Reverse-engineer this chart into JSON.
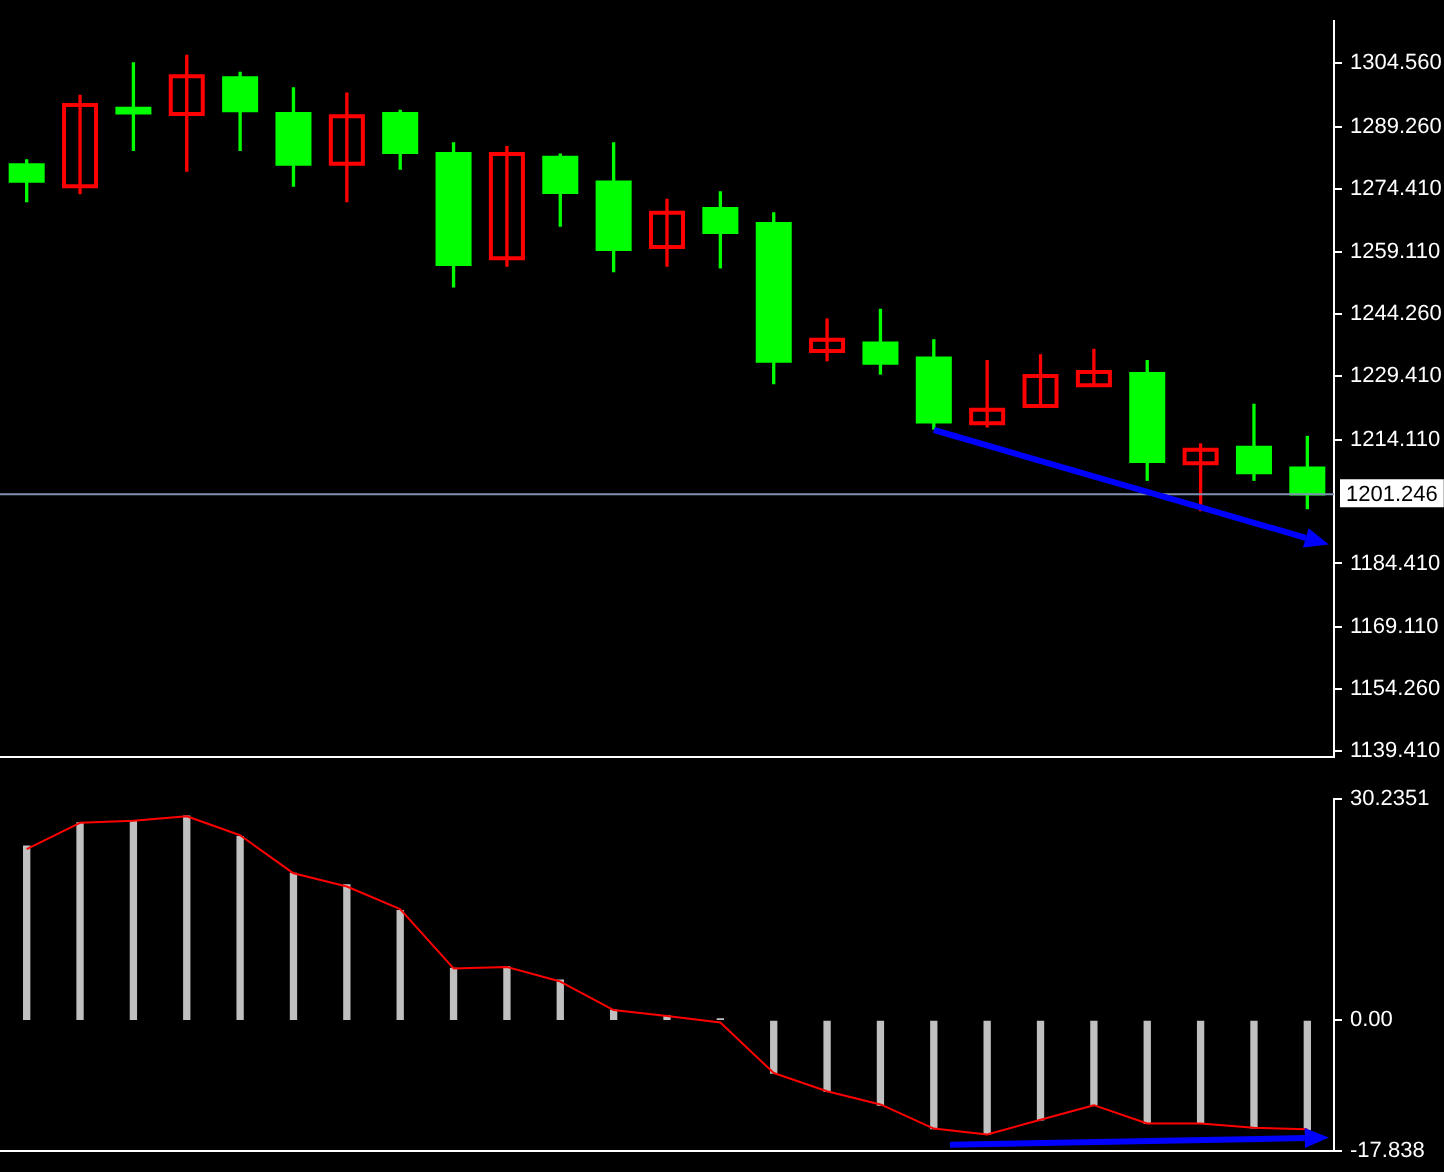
{
  "chart_data": [
    {
      "type": "candlestick",
      "categories": [
        null,
        null,
        null,
        null,
        null,
        null,
        null,
        null,
        null,
        null,
        null,
        null,
        null,
        null,
        null,
        null,
        null,
        null,
        null,
        null,
        null,
        null,
        null,
        null,
        null
      ],
      "ohlc": [
        [
          1280.0,
          1281.3,
          1271.3,
          1276.3
        ],
        [
          1275.0,
          1296.8,
          1273.2,
          1294.5
        ],
        [
          1293.6,
          1304.6,
          1283.6,
          1292.7
        ],
        [
          1292.3,
          1306.4,
          1278.6,
          1301.4
        ],
        [
          1300.9,
          1302.3,
          1283.6,
          1293.2
        ],
        [
          1292.3,
          1298.6,
          1275.0,
          1280.4
        ],
        [
          1280.4,
          1297.3,
          1271.3,
          1291.8
        ],
        [
          1292.3,
          1293.2,
          1279.1,
          1283.2
        ],
        [
          1282.7,
          1285.4,
          1250.8,
          1256.3
        ],
        [
          1257.7,
          1284.5,
          1255.8,
          1282.7
        ],
        [
          1281.8,
          1282.7,
          1265.4,
          1273.6
        ],
        [
          1275.9,
          1285.4,
          1254.5,
          1259.9
        ],
        [
          1260.4,
          1271.8,
          1255.8,
          1268.6
        ],
        [
          1269.5,
          1273.6,
          1255.4,
          1264.0
        ],
        [
          1265.9,
          1268.6,
          1227.6,
          1233.1
        ],
        [
          1235.4,
          1243.1,
          1233.1,
          1238.1
        ],
        [
          1237.2,
          1245.4,
          1229.9,
          1232.6
        ],
        [
          1233.6,
          1238.1,
          1216.7,
          1218.5
        ],
        [
          1218.1,
          1233.1,
          1217.2,
          1221.3
        ],
        [
          1222.2,
          1234.5,
          1222.2,
          1229.4
        ],
        [
          1227.2,
          1235.8,
          1227.2,
          1230.4
        ],
        [
          1229.9,
          1233.1,
          1204.4,
          1209.0
        ],
        [
          1208.5,
          1213.1,
          1197.1,
          1211.7
        ],
        [
          1212.2,
          1222.6,
          1204.4,
          1206.3
        ],
        [
          1207.2,
          1214.9,
          1197.6,
          1201.2
        ]
      ],
      "colors": [
        "#00ff00",
        "#ff0000",
        "#00ff00",
        "#ff0000",
        "#00ff00",
        "#00ff00",
        "#ff0000",
        "#00ff00",
        "#00ff00",
        "#ff0000",
        "#00ff00",
        "#00ff00",
        "#ff0000",
        "#00ff00",
        "#00ff00",
        "#ff0000",
        "#00ff00",
        "#00ff00",
        "#ff0000",
        "#ff0000",
        "#ff0000",
        "#00ff00",
        "#ff0000",
        "#00ff00",
        "#00ff00"
      ],
      "ylim": [
        1138,
        1314.6
      ],
      "yticks": [
        {
          "value": 1304.56,
          "label": "1304.560"
        },
        {
          "value": 1289.26,
          "label": "1289.260"
        },
        {
          "value": 1274.41,
          "label": "1274.410"
        },
        {
          "value": 1259.11,
          "label": "1259.110"
        },
        {
          "value": 1244.26,
          "label": "1244.260"
        },
        {
          "value": 1229.41,
          "label": "1229.410"
        },
        {
          "value": 1214.11,
          "label": "1214.110"
        },
        {
          "value": 1184.41,
          "label": "1184.410"
        },
        {
          "value": 1169.11,
          "label": "1169.110"
        },
        {
          "value": 1154.26,
          "label": "1154.260"
        },
        {
          "value": 1139.41,
          "label": "1139.410"
        }
      ],
      "ref_lines": [
        {
          "axis": "y",
          "value": 1201.246,
          "label": "1201.246",
          "color": "#8090b0"
        }
      ],
      "tick_labels": "y",
      "grid": false,
      "legend": false
    },
    {
      "type": "bar",
      "categories": [
        null,
        null,
        null,
        null,
        null,
        null,
        null,
        null,
        null,
        null,
        null,
        null,
        null,
        null,
        null,
        null,
        null,
        null,
        null,
        null,
        null,
        null,
        null,
        null,
        null
      ],
      "series": [
        {
          "type": "bar",
          "color": "#c0c0c0",
          "values": [
            23.8,
            27.0,
            27.3,
            27.9,
            25.1,
            20.1,
            18.5,
            15.0,
            7.1,
            7.3,
            5.5,
            1.4,
            0.6,
            0.2,
            -7.2,
            -9.7,
            -11.6,
            -14.8,
            -15.6,
            -13.6,
            -11.6,
            -14.1,
            -14.1,
            -14.7,
            -14.9
          ]
        },
        {
          "type": "line",
          "color": "#ff0000",
          "values": [
            23.4,
            27.0,
            27.3,
            27.9,
            25.3,
            20.1,
            18.3,
            15.2,
            7.1,
            7.3,
            5.3,
            1.4,
            0.6,
            -0.3,
            -7.2,
            -9.7,
            -11.5,
            -14.8,
            -15.6,
            -13.6,
            -11.6,
            -14.1,
            -14.1,
            -14.7,
            -14.9
          ]
        }
      ],
      "ylim": [
        -17.838,
        30.2351
      ],
      "yticks": [
        30.2351,
        {
          "value": 0,
          "label": "0.00"
        },
        -17.838
      ],
      "tick_labels": "y",
      "grid": false,
      "legend": false,
      "marker": "none"
    }
  ]
}
